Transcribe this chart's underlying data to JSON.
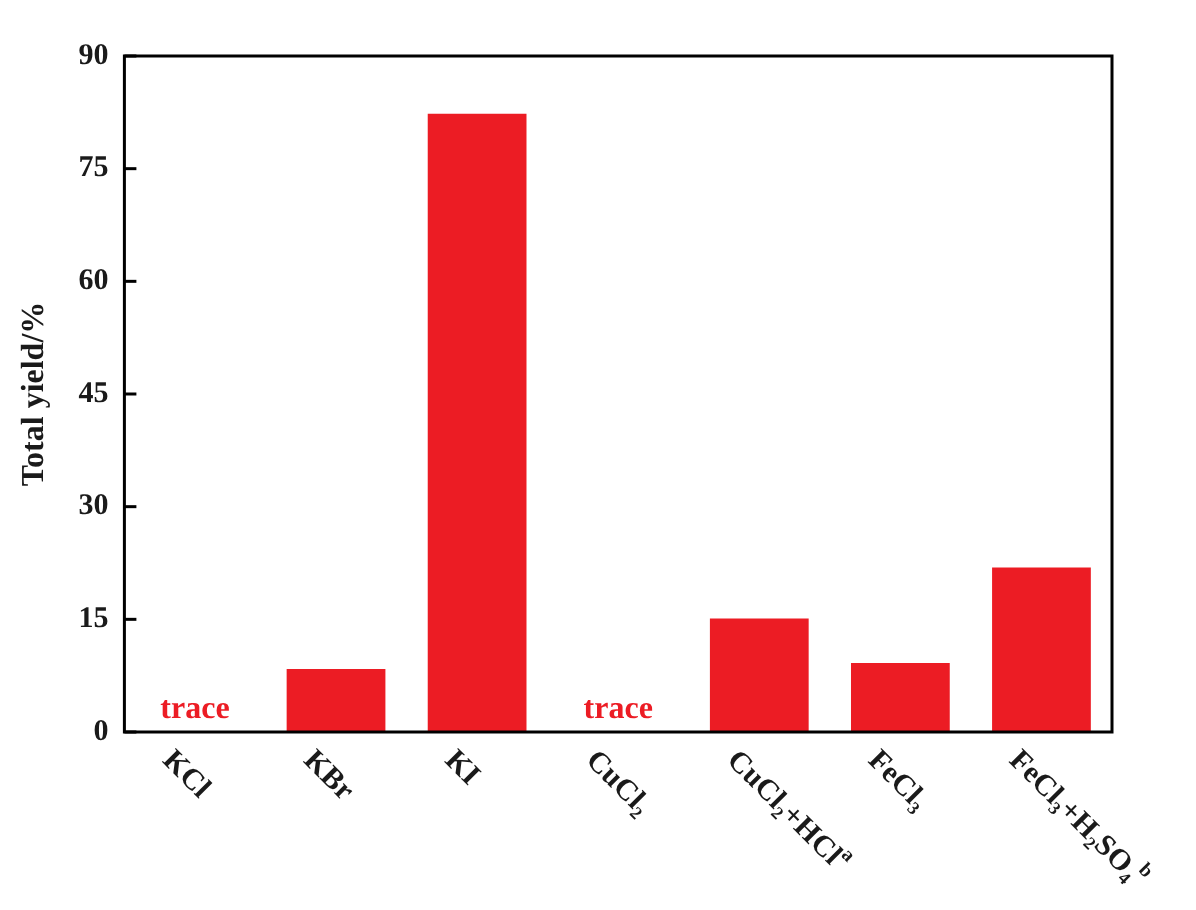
{
  "chart_data": {
    "type": "bar",
    "ylabel": "Total yield/%",
    "categories": [
      "KCl",
      "KBr",
      "KI",
      "CuCl₂",
      "CuCl₂+HCl$^{a}$",
      "FeCl₃",
      "FeCl₃+H₂SO₄$^{b}$"
    ],
    "values": [
      null,
      8.4,
      82.3,
      null,
      15.1,
      9.2,
      21.9
    ],
    "color": "#ec1c24",
    "ylim": [
      0,
      90
    ],
    "yticks": [
      0,
      15,
      30,
      45,
      60,
      75,
      90
    ],
    "grid": false,
    "legend": false,
    "annotations": [
      "trace",
      "trace"
    ]
  }
}
